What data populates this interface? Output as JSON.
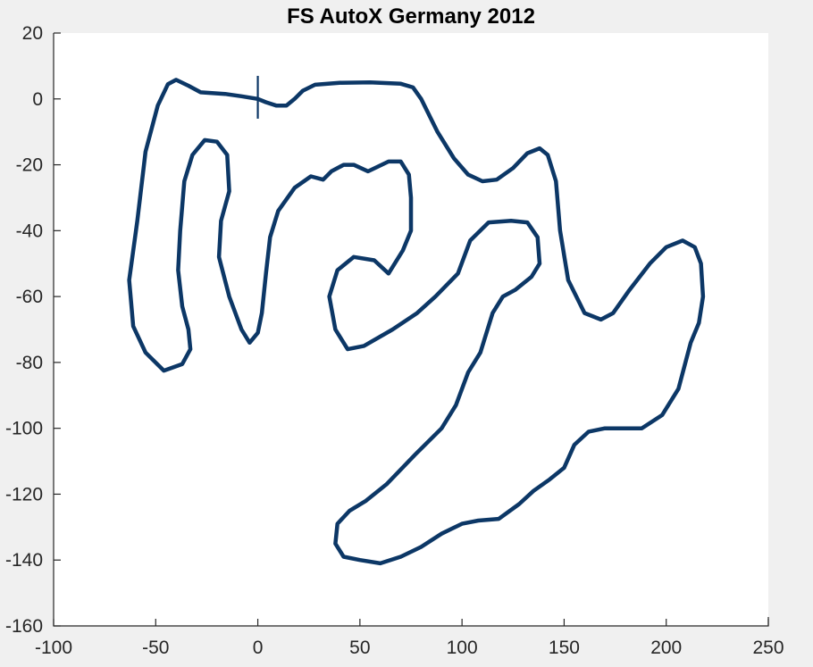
{
  "chart_data": {
    "type": "line",
    "title": "FS AutoX Germany 2012",
    "xlabel": "",
    "ylabel": "",
    "xlim": [
      -100,
      250
    ],
    "ylim": [
      -160,
      20
    ],
    "xticks": [
      -100,
      -50,
      0,
      50,
      100,
      150,
      200,
      250
    ],
    "yticks": [
      20,
      0,
      -20,
      -40,
      -60,
      -80,
      -100,
      -120,
      -140,
      -160
    ],
    "grid": false,
    "legend": "none",
    "colors": {
      "track": "#0c3766",
      "axes_background": "#ffffff",
      "figure_background": "#f0f0f0"
    },
    "start_marker": {
      "x": 0,
      "y": 0,
      "y_range": [
        -6,
        7
      ]
    },
    "series": [
      {
        "values": [
          [
            0,
            0
          ],
          [
            4,
            -1
          ],
          [
            9,
            -2
          ],
          [
            14,
            -2
          ],
          [
            18,
            0
          ],
          [
            22,
            2.5
          ],
          [
            28,
            4.3
          ],
          [
            40,
            4.9
          ],
          [
            55,
            5
          ],
          [
            70,
            4.6
          ],
          [
            76,
            3.5
          ],
          [
            80,
            0
          ],
          [
            88,
            -10
          ],
          [
            96,
            -18
          ],
          [
            103,
            -23
          ],
          [
            110,
            -25
          ],
          [
            117,
            -24.5
          ],
          [
            125,
            -21
          ],
          [
            132,
            -16.5
          ],
          [
            138,
            -15
          ],
          [
            142,
            -17
          ],
          [
            146,
            -25
          ],
          [
            148,
            -40
          ],
          [
            152,
            -55
          ],
          [
            160,
            -65
          ],
          [
            168,
            -67
          ],
          [
            174,
            -65
          ],
          [
            182,
            -58
          ],
          [
            192,
            -50
          ],
          [
            200,
            -45
          ],
          [
            208,
            -43
          ],
          [
            214,
            -45
          ],
          [
            217,
            -50
          ],
          [
            218,
            -60
          ],
          [
            216,
            -68
          ],
          [
            212,
            -74
          ],
          [
            206,
            -88
          ],
          [
            198,
            -96
          ],
          [
            188,
            -100
          ],
          [
            170,
            -100
          ],
          [
            162,
            -101
          ],
          [
            155,
            -105
          ],
          [
            150,
            -112
          ],
          [
            143,
            -115.5
          ],
          [
            135,
            -119
          ],
          [
            128,
            -123
          ],
          [
            118,
            -127.5
          ],
          [
            108,
            -128
          ],
          [
            100,
            -129
          ],
          [
            90,
            -132
          ],
          [
            80,
            -136
          ],
          [
            70,
            -139
          ],
          [
            60,
            -141
          ],
          [
            50,
            -140
          ],
          [
            42,
            -139
          ],
          [
            38,
            -135
          ],
          [
            39,
            -129
          ],
          [
            45,
            -125
          ],
          [
            53,
            -122
          ],
          [
            63,
            -117
          ],
          [
            77,
            -108
          ],
          [
            90,
            -100
          ],
          [
            97,
            -93
          ],
          [
            103,
            -83
          ],
          [
            109,
            -77
          ],
          [
            115,
            -65
          ],
          [
            120,
            -60
          ],
          [
            126,
            -58
          ],
          [
            134,
            -54
          ],
          [
            138,
            -50
          ],
          [
            137,
            -42
          ],
          [
            132,
            -37.5
          ],
          [
            124,
            -37
          ],
          [
            113,
            -37.5
          ],
          [
            104,
            -43
          ],
          [
            98,
            -53
          ],
          [
            87,
            -60
          ],
          [
            78,
            -65
          ],
          [
            66,
            -70
          ],
          [
            52,
            -75
          ],
          [
            44,
            -76
          ],
          [
            38,
            -70
          ],
          [
            35,
            -60
          ],
          [
            39,
            -52
          ],
          [
            47,
            -48
          ],
          [
            57,
            -49
          ],
          [
            64,
            -53
          ],
          [
            71,
            -46
          ],
          [
            75,
            -40
          ],
          [
            75,
            -30
          ],
          [
            74,
            -23
          ],
          [
            70,
            -19
          ],
          [
            64,
            -19
          ],
          [
            54,
            -22
          ],
          [
            47,
            -20
          ],
          [
            42,
            -20
          ],
          [
            36,
            -22
          ],
          [
            32,
            -24.5
          ],
          [
            26,
            -23.5
          ],
          [
            18,
            -27
          ],
          [
            10,
            -34
          ],
          [
            6,
            -42
          ],
          [
            4,
            -53
          ],
          [
            2,
            -65
          ],
          [
            0,
            -71
          ],
          [
            -4,
            -74
          ],
          [
            -8,
            -70
          ],
          [
            -14,
            -60
          ],
          [
            -19,
            -48
          ],
          [
            -18,
            -37
          ],
          [
            -14,
            -28
          ],
          [
            -15,
            -17
          ],
          [
            -20,
            -13
          ],
          [
            -26,
            -12.5
          ],
          [
            -32,
            -17
          ],
          [
            -36,
            -25
          ],
          [
            -38,
            -40
          ],
          [
            -39,
            -52
          ],
          [
            -37,
            -63
          ],
          [
            -34,
            -70
          ],
          [
            -33,
            -76
          ],
          [
            -37,
            -80.5
          ],
          [
            -46,
            -82.5
          ],
          [
            -55,
            -77
          ],
          [
            -61,
            -69
          ],
          [
            -63,
            -55
          ],
          [
            -59,
            -37
          ],
          [
            -55,
            -16
          ],
          [
            -49,
            -2
          ],
          [
            -44,
            4.5
          ],
          [
            -40,
            5.8
          ],
          [
            -34,
            4
          ],
          [
            -28,
            2
          ],
          [
            -16,
            1.5
          ],
          [
            -8,
            0.8
          ],
          [
            0,
            0
          ]
        ]
      }
    ]
  }
}
